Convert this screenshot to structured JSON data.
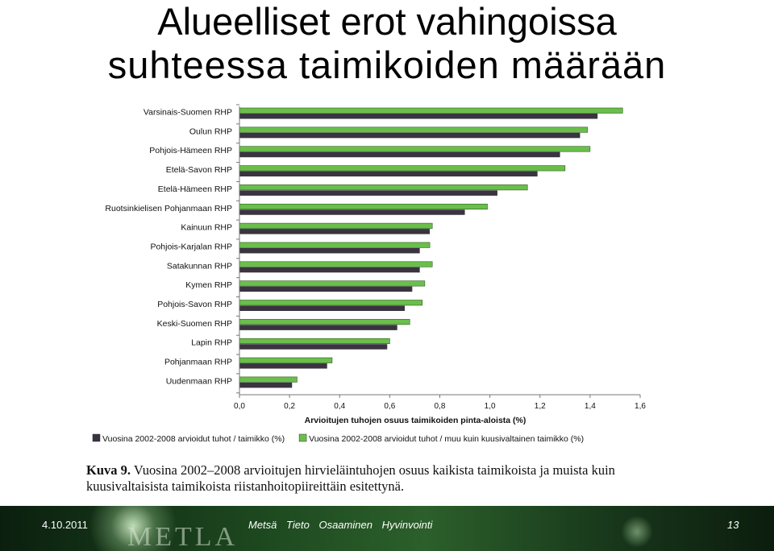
{
  "slide": {
    "title_line1": "Alueelliset erot vahingoissa",
    "title_line2": "suhteessa taimikoiden määrään"
  },
  "chart_data": {
    "type": "bar",
    "orientation": "horizontal",
    "categories": [
      "Varsinais-Suomen RHP",
      "Oulun RHP",
      "Pohjois-Hämeen RHP",
      "Etelä-Savon RHP",
      "Etelä-Hämeen RHP",
      "Ruotsinkielisen Pohjanmaan RHP",
      "Kainuun RHP",
      "Pohjois-Karjalan RHP",
      "Satakunnan RHP",
      "Kymen RHP",
      "Pohjois-Savon RHP",
      "Keski-Suomen RHP",
      "Lapin RHP",
      "Pohjanmaan RHP",
      "Uudenmaan RHP"
    ],
    "series": [
      {
        "name": "Vuosina 2002-2008 arvioidut tuhot / muu kuin kuusivaltainen taimikko (%)",
        "color": "#6abf4b",
        "values": [
          1.53,
          1.39,
          1.4,
          1.3,
          1.15,
          0.99,
          0.77,
          0.76,
          0.77,
          0.74,
          0.73,
          0.68,
          0.6,
          0.37,
          0.23
        ]
      },
      {
        "name": "Vuosina 2002-2008 arvioidut tuhot / taimikko (%)",
        "color": "#3a3340",
        "values": [
          1.43,
          1.36,
          1.28,
          1.19,
          1.03,
          0.9,
          0.76,
          0.72,
          0.72,
          0.69,
          0.66,
          0.63,
          0.59,
          0.35,
          0.21
        ]
      }
    ],
    "legend_order": [
      1,
      0
    ],
    "xlim": [
      0,
      1.6
    ],
    "xticks": [
      "0,0",
      "0,2",
      "0,4",
      "0,6",
      "0,8",
      "1,0",
      "1,2",
      "1,4",
      "1,6"
    ],
    "xlabel": "Arvioitujen tuhojen osuus taimikoiden pinta-aloista (%)",
    "ylabel": "",
    "legend_position": "bottom"
  },
  "caption": {
    "label": "Kuva 9.",
    "text": "Vuosina 2002–2008 arvioitujen hirvieläintuhojen osuus kaikista taimikoista ja muista kuin kuusivaltaisista taimikoista riistanhoitopiireittäin esitettynä."
  },
  "footer": {
    "date": "4.10.2011",
    "logo_text": "METLA",
    "tags": [
      "Metsä",
      "Tieto",
      "Osaaminen",
      "Hyvinvointi"
    ],
    "page_number": "13"
  }
}
